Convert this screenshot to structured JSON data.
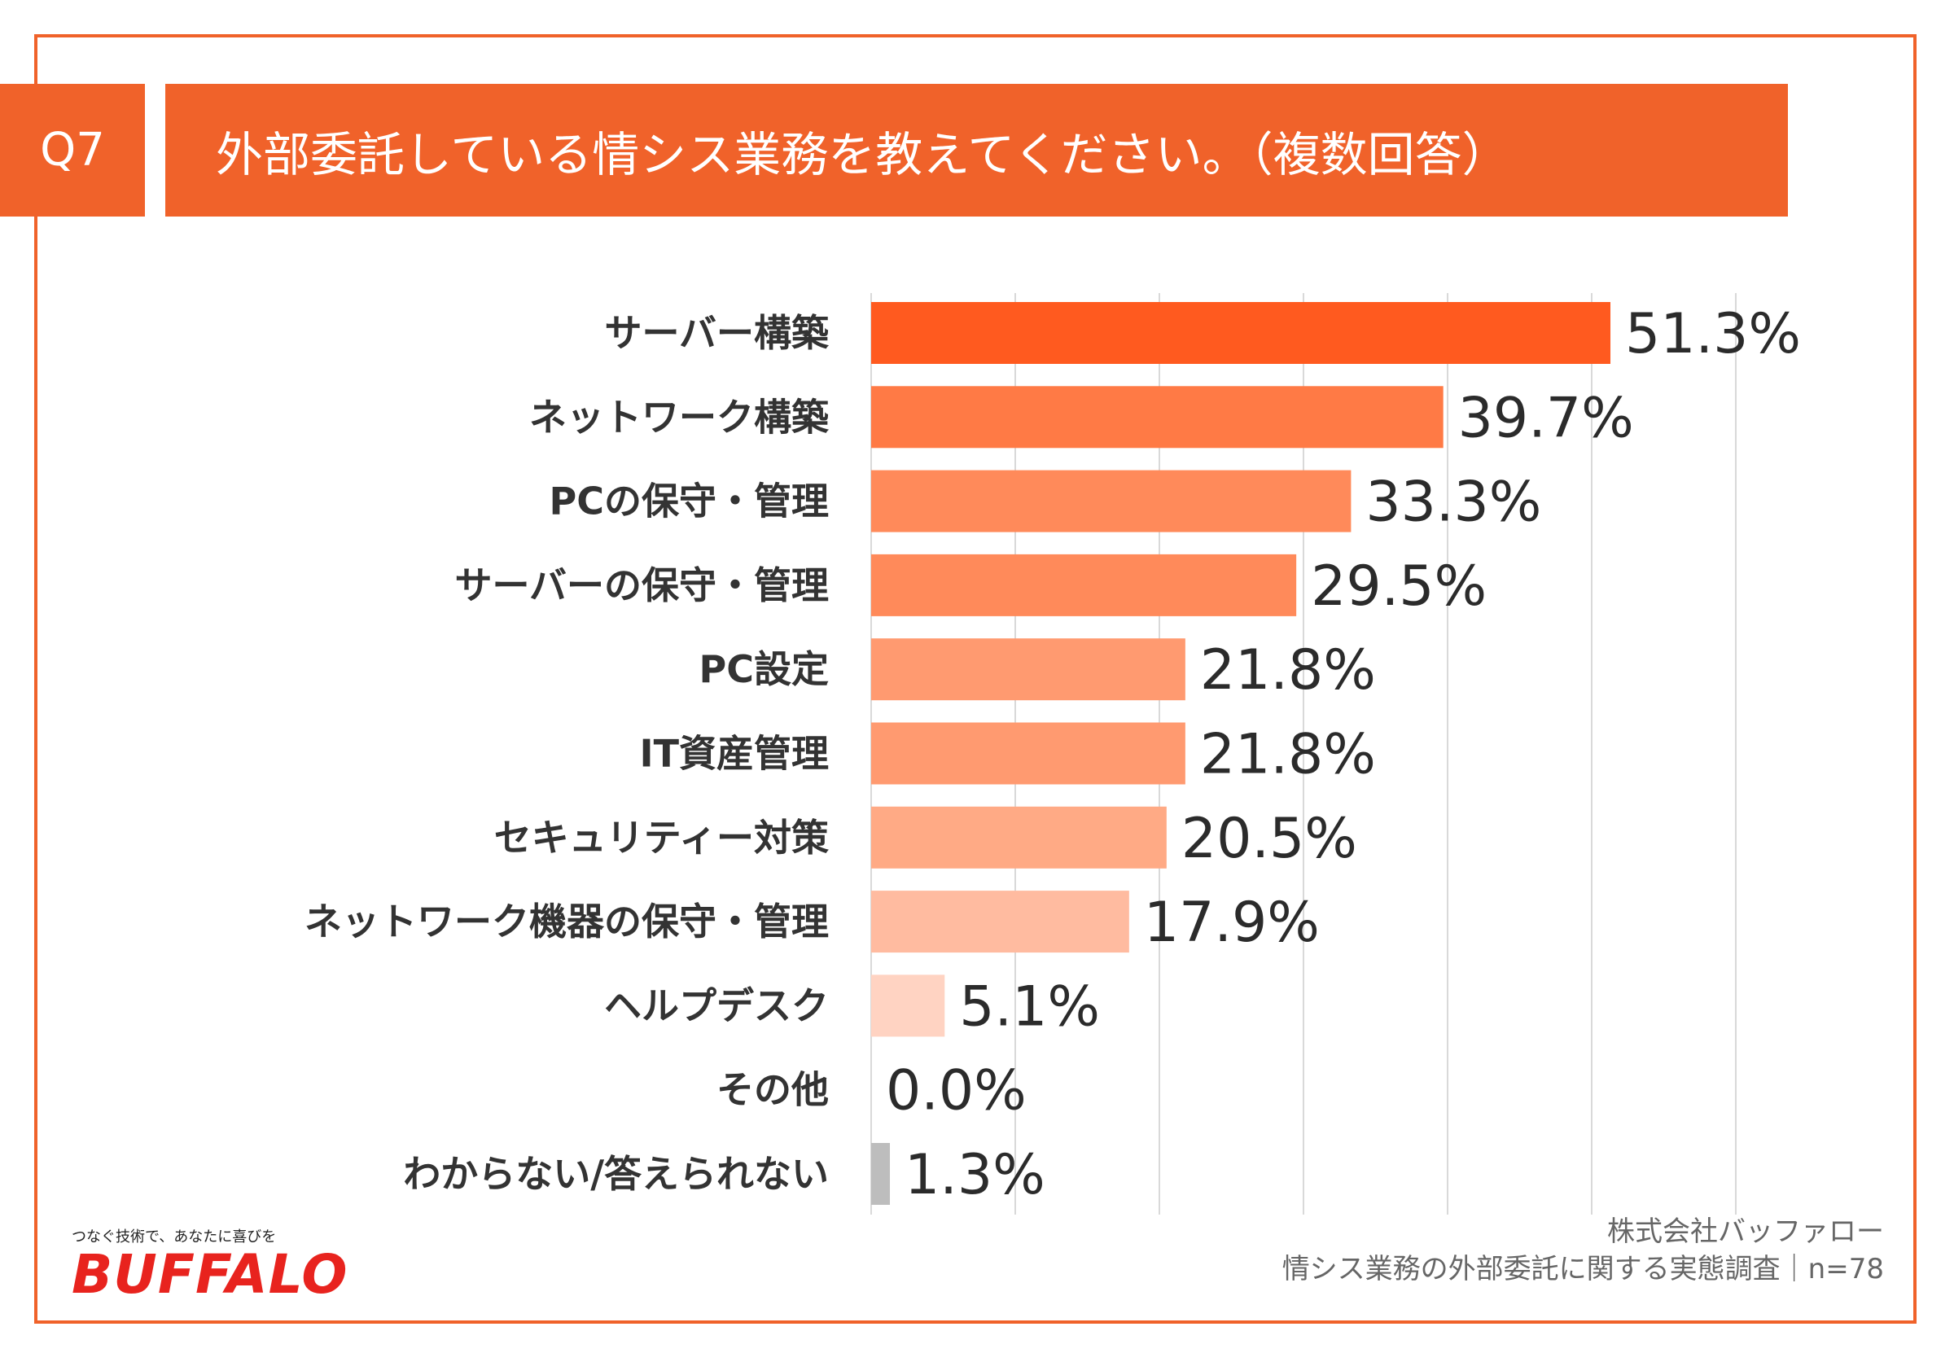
{
  "header": {
    "badge": "Q7",
    "title": "外部委託している情シス業務を教えてください。（複数回答）"
  },
  "chart_data": {
    "type": "bar",
    "orientation": "horizontal",
    "title": "外部委託している情シス業務を教えてください。（複数回答）",
    "categories": [
      "サーバー構築",
      "ネットワーク構築",
      "PCの保守・管理",
      "サーバーの保守・管理",
      "PC設定",
      "IT資産管理",
      "セキュリティー対策",
      "ネットワーク機器の保守・管理",
      "ヘルプデスク",
      "その他",
      "わからない/答えられない"
    ],
    "values": [
      51.3,
      39.7,
      33.3,
      29.5,
      21.8,
      21.8,
      20.5,
      17.9,
      5.1,
      0.0,
      1.3
    ],
    "value_labels": [
      "51.3%",
      "39.7%",
      "33.3%",
      "29.5%",
      "21.8%",
      "21.8%",
      "20.5%",
      "17.9%",
      "5.1%",
      "0.0%",
      "1.3%"
    ],
    "bar_colors": [
      "#FF5A1F",
      "#FF7A45",
      "#FF8A5A",
      "#FF8A5A",
      "#FF9A70",
      "#FF9A70",
      "#FFAA85",
      "#FFBBA0",
      "#FFD3C2",
      "#FFD3C2",
      "#BDBDBD"
    ],
    "xlim": [
      0,
      60
    ],
    "grid": true,
    "xlabel": "",
    "ylabel": ""
  },
  "brand": {
    "tagline": "つなぐ技術で、あなたに喜びを",
    "logo_text": "BUFFALO"
  },
  "footer": {
    "company": "株式会社バッファロー",
    "survey": "情シス業務の外部委託に関する実態調査｜n=78"
  }
}
